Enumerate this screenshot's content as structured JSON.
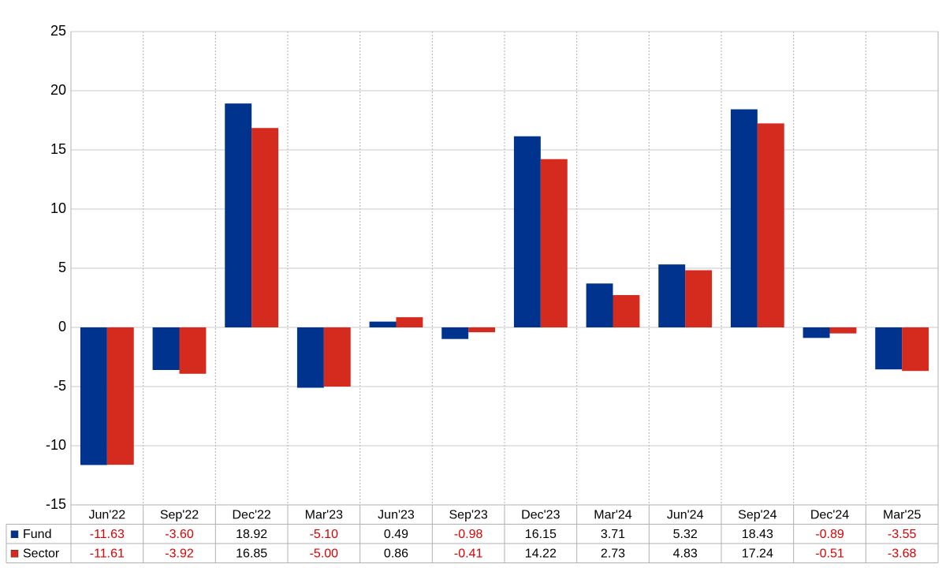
{
  "chart_data": {
    "type": "bar",
    "categories": [
      "Jun'22",
      "Sep'22",
      "Dec'22",
      "Mar'23",
      "Jun'23",
      "Sep'23",
      "Dec'23",
      "Mar'24",
      "Jun'24",
      "Sep'24",
      "Dec'24",
      "Mar'25"
    ],
    "series": [
      {
        "name": "Fund",
        "color": "#00338d",
        "values": [
          -11.63,
          -3.6,
          18.92,
          -5.1,
          0.49,
          -0.98,
          16.15,
          3.71,
          5.32,
          18.43,
          -0.89,
          -3.55
        ],
        "value_labels": [
          "-11.63",
          "-3.60",
          "18.92",
          "-5.10",
          "0.49",
          "-0.98",
          "16.15",
          "3.71",
          "5.32",
          "18.43",
          "-0.89",
          "-3.55"
        ]
      },
      {
        "name": "Sector",
        "color": "#d52b1e",
        "values": [
          -11.61,
          -3.92,
          16.85,
          -5.0,
          0.86,
          -0.41,
          14.22,
          2.73,
          4.83,
          17.24,
          -0.51,
          -3.68
        ],
        "value_labels": [
          "-11.61",
          "-3.92",
          "16.85",
          "-5.00",
          "0.86",
          "-0.41",
          "14.22",
          "2.73",
          "4.83",
          "17.24",
          "-0.51",
          "-3.68"
        ]
      }
    ],
    "ylim": [
      -15,
      25
    ],
    "yticks": [
      -15,
      -10,
      -5,
      0,
      5,
      10,
      15,
      20,
      25
    ],
    "grid": true
  }
}
